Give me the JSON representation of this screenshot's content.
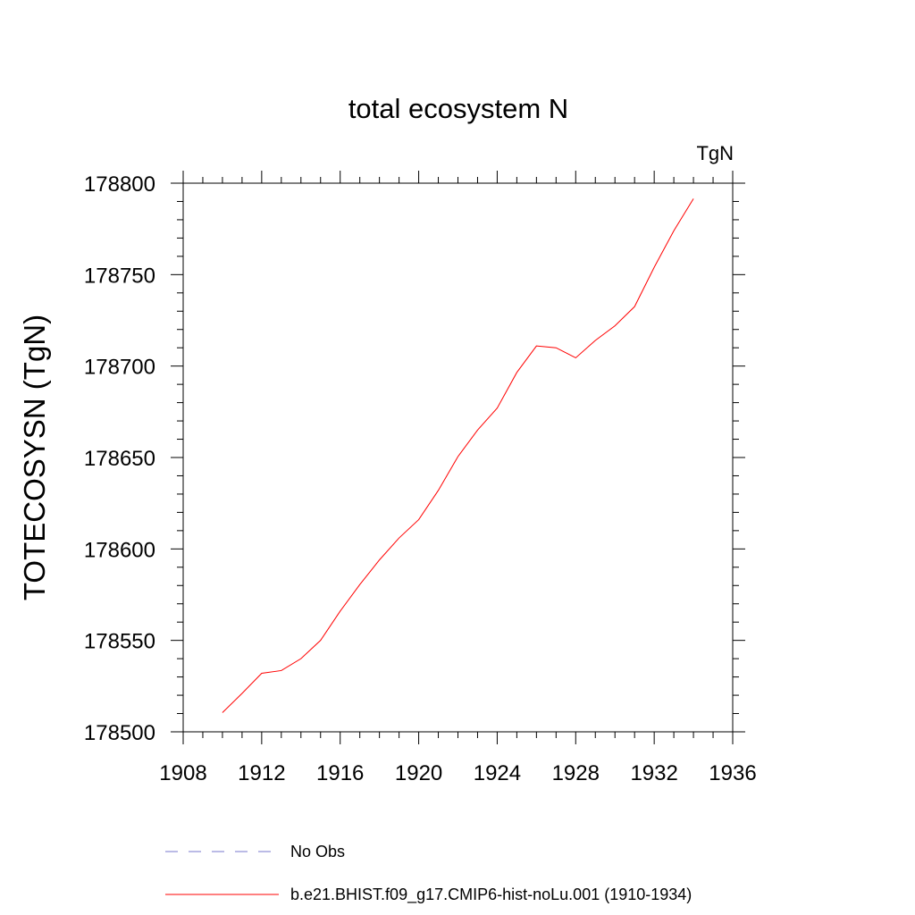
{
  "chart_data": {
    "type": "line",
    "title": "total ecosystem N",
    "units": "TgN",
    "xlabel": "",
    "ylabel": "TOTECOSYSN  (TgN)",
    "xlim": [
      1908,
      1936
    ],
    "ylim": [
      178500,
      178800
    ],
    "x_ticks": [
      1908,
      1912,
      1916,
      1920,
      1924,
      1928,
      1932,
      1936
    ],
    "y_ticks": [
      178500,
      178550,
      178600,
      178650,
      178700,
      178750,
      178800
    ],
    "x_minor_step": 1,
    "y_minor_step": 10,
    "grid": false,
    "legend_position": "bottom",
    "series": [
      {
        "name": "b.e21.BHIST.f09_g17.CMIP6-hist-noLu.001 (1910-1934)",
        "color": "#ff0000",
        "style": "solid",
        "x": [
          1910,
          1911,
          1912,
          1913,
          1914,
          1915,
          1916,
          1917,
          1918,
          1919,
          1920,
          1921,
          1922,
          1923,
          1924,
          1925,
          1926,
          1927,
          1928,
          1929,
          1930,
          1931,
          1932,
          1933,
          1934
        ],
        "values": [
          178510.5,
          178521,
          178532,
          178533.5,
          178540,
          178550,
          178566,
          178580.5,
          178594,
          178606,
          178616,
          178632,
          178650.5,
          178665,
          178677,
          178696.5,
          178711,
          178710,
          178704.5,
          178714,
          178722,
          178732.5,
          178754,
          178774,
          178791.5
        ]
      },
      {
        "name": "No Obs",
        "color": "#7777cc",
        "style": "dashed",
        "x": [],
        "values": []
      }
    ]
  }
}
